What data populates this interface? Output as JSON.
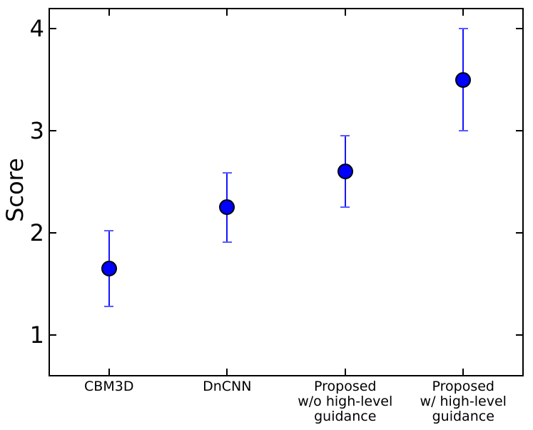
{
  "chart_data": {
    "type": "scatter",
    "title": "",
    "xlabel": "",
    "ylabel": "Score",
    "categories": [
      "CBM3D",
      "DnCNN",
      "Proposed\nw/o high-level\nguidance",
      "Proposed\nw/ high-level\nguidance"
    ],
    "values": [
      1.65,
      2.25,
      2.6,
      3.5
    ],
    "error_low": [
      1.28,
      1.91,
      2.25,
      3.0
    ],
    "error_high": [
      2.02,
      2.59,
      2.95,
      4.0
    ],
    "yticks": [
      1,
      2,
      3,
      4
    ],
    "ylim": [
      0.61,
      4.19
    ],
    "grid": false,
    "legend_visible": false,
    "marker_color": "#0000ff",
    "marker_edge_color": "#000000",
    "errorbar_color": "#1414ff",
    "errorbar_cap_color": "#5a5aff",
    "axis_color": "#000000",
    "background_color": "#ffffff"
  }
}
